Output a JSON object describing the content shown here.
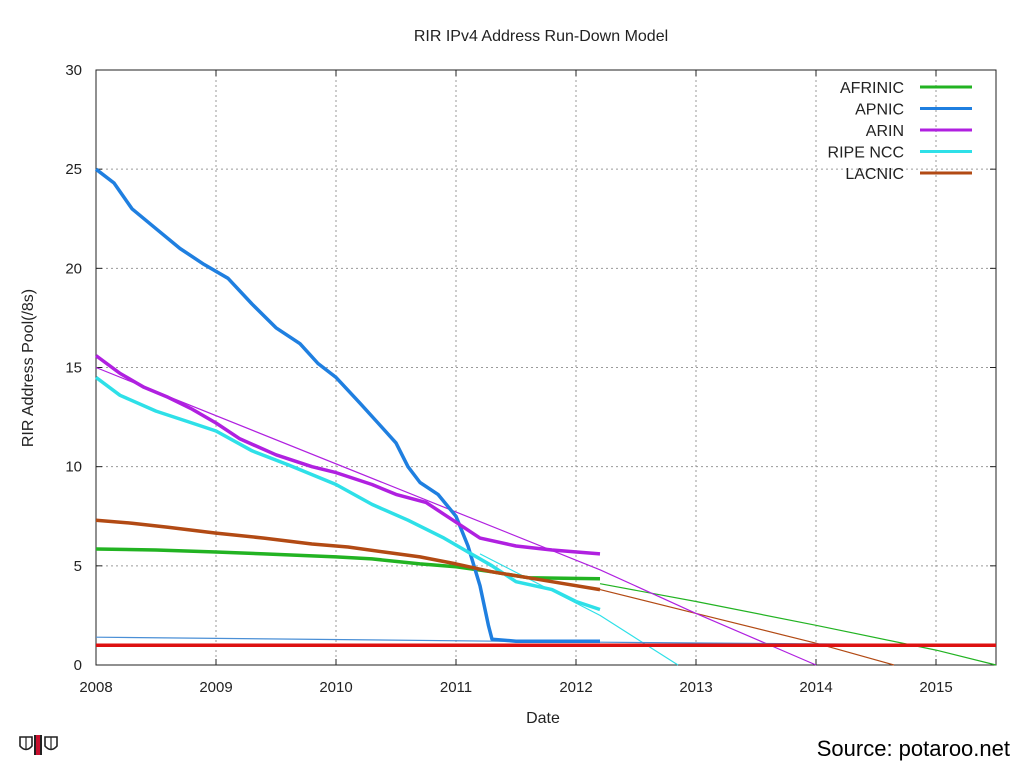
{
  "source_label": "Source: potaroo.net",
  "colors": {
    "AFRINIC": "#22b322",
    "APNIC": "#1f7fe0",
    "ARIN": "#b020e0",
    "RIPE NCC": "#2ee0e8",
    "LACNIC": "#b24a14",
    "threshold": "#dd1111",
    "aux": "#4a8fd6"
  },
  "chart_data": {
    "type": "line",
    "title": "RIR IPv4 Address Run-Down Model",
    "xlabel": "Date",
    "ylabel": "RIR Address Pool(/8s)",
    "xlim": [
      2008,
      2015.5
    ],
    "ylim": [
      0,
      30
    ],
    "xticks": [
      2008,
      2009,
      2010,
      2011,
      2012,
      2013,
      2014,
      2015
    ],
    "yticks": [
      0,
      5,
      10,
      15,
      20,
      25,
      30
    ],
    "grid": true,
    "legend_position": "top-right",
    "series": [
      {
        "name": "AFRINIC",
        "x": [
          2008,
          2008.5,
          2009,
          2009.4,
          2010,
          2010.3,
          2010.7,
          2011.0,
          2011.3,
          2011.6,
          2012.2
        ],
        "y": [
          5.85,
          5.8,
          5.7,
          5.6,
          5.45,
          5.35,
          5.1,
          4.95,
          4.7,
          4.4,
          4.35
        ]
      },
      {
        "name": "APNIC",
        "x": [
          2008,
          2008.15,
          2008.3,
          2008.5,
          2008.7,
          2008.9,
          2009.1,
          2009.3,
          2009.5,
          2009.7,
          2009.85,
          2010.0,
          2010.2,
          2010.35,
          2010.5,
          2010.6,
          2010.7,
          2010.85,
          2011.0,
          2011.1,
          2011.2,
          2011.27,
          2011.3,
          2011.5,
          2012.2
        ],
        "y": [
          25.0,
          24.3,
          23.0,
          22.0,
          21.0,
          20.2,
          19.5,
          18.2,
          17.0,
          16.2,
          15.2,
          14.5,
          13.2,
          12.2,
          11.2,
          10.0,
          9.2,
          8.6,
          7.5,
          6.0,
          4.0,
          2.0,
          1.3,
          1.2,
          1.2
        ]
      },
      {
        "name": "ARIN",
        "x": [
          2008,
          2008.2,
          2008.4,
          2008.6,
          2008.8,
          2009,
          2009.2,
          2009.5,
          2009.8,
          2010,
          2010.3,
          2010.5,
          2010.75,
          2010.9,
          2011.0,
          2011.2,
          2011.5,
          2011.8,
          2012.2
        ],
        "y": [
          15.6,
          14.7,
          14.0,
          13.5,
          12.9,
          12.2,
          11.4,
          10.6,
          10.0,
          9.7,
          9.1,
          8.6,
          8.2,
          7.6,
          7.2,
          6.4,
          6.0,
          5.8,
          5.6
        ]
      },
      {
        "name": "RIPE NCC",
        "x": [
          2008,
          2008.2,
          2008.5,
          2008.8,
          2009,
          2009.3,
          2009.6,
          2010,
          2010.3,
          2010.6,
          2010.9,
          2011.1,
          2011.3,
          2011.5,
          2011.8,
          2012.0,
          2012.2
        ],
        "y": [
          14.5,
          13.6,
          12.8,
          12.2,
          11.8,
          10.8,
          10.1,
          9.1,
          8.1,
          7.3,
          6.4,
          5.7,
          5.0,
          4.2,
          3.8,
          3.2,
          2.8
        ]
      },
      {
        "name": "LACNIC",
        "x": [
          2008,
          2008.3,
          2008.6,
          2009,
          2009.4,
          2009.8,
          2010.1,
          2010.4,
          2010.7,
          2011.0,
          2011.3,
          2011.6,
          2011.9,
          2012.2
        ],
        "y": [
          7.3,
          7.15,
          6.95,
          6.65,
          6.4,
          6.1,
          5.95,
          5.7,
          5.45,
          5.1,
          4.7,
          4.4,
          4.1,
          3.8
        ]
      },
      {
        "name": "AFRINIC projection",
        "x": [
          2012.2,
          2013,
          2014,
          2015,
          2015.5
        ],
        "y": [
          4.1,
          3.2,
          2.0,
          0.75,
          0
        ]
      },
      {
        "name": "LACNIC projection",
        "x": [
          2012.2,
          2013,
          2014,
          2014.65
        ],
        "y": [
          3.8,
          2.6,
          1.1,
          0
        ]
      },
      {
        "name": "ARIN projection",
        "x": [
          2008,
          2012.2,
          2013,
          2014.0
        ],
        "y": [
          15.0,
          4.8,
          2.6,
          0
        ]
      },
      {
        "name": "RIPE NCC projection",
        "x": [
          2011.2,
          2012.2,
          2012.85
        ],
        "y": [
          5.6,
          2.5,
          0
        ]
      },
      {
        "name": "APNIC reserve",
        "x": [
          2008,
          2012.2,
          2015.5
        ],
        "y": [
          1.4,
          1.15,
          1.0
        ]
      },
      {
        "name": "Threshold",
        "x": [
          2008,
          2015.5
        ],
        "y": [
          1.0,
          1.0
        ]
      }
    ]
  }
}
